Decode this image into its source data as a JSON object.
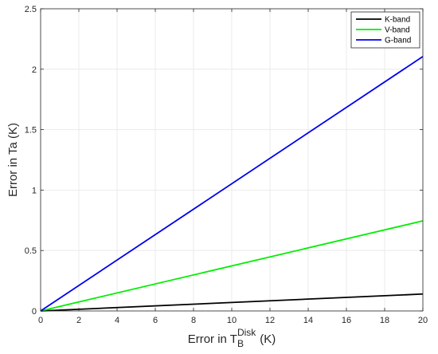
{
  "chart_data": {
    "type": "line",
    "xlabel": {
      "main": "Error in T",
      "sub": "B",
      "sup": "Disk",
      "unit": "(K)"
    },
    "ylabel": "Error in Ta (K)",
    "xlim": [
      0,
      20
    ],
    "ylim": [
      0,
      2.5
    ],
    "xticks": [
      0,
      2,
      4,
      6,
      8,
      10,
      12,
      14,
      16,
      18,
      20
    ],
    "yticks": [
      0,
      0.5,
      1,
      1.5,
      2,
      2.5
    ],
    "xtick_labels": [
      "0",
      "2",
      "4",
      "6",
      "8",
      "10",
      "12",
      "14",
      "16",
      "18",
      "20"
    ],
    "ytick_labels": [
      "0",
      "0.5",
      "1",
      "1.5",
      "2",
      "2.5"
    ],
    "grid": true,
    "legend_position": "top-right",
    "series": [
      {
        "name": "K-band",
        "color": "#000000",
        "x": [
          0,
          20
        ],
        "y": [
          0,
          0.14
        ]
      },
      {
        "name": "V-band",
        "color": "#00ee00",
        "x": [
          0,
          20
        ],
        "y": [
          0,
          0.745
        ]
      },
      {
        "name": "G-band",
        "color": "#0000ee",
        "x": [
          0,
          20
        ],
        "y": [
          0,
          2.105
        ]
      }
    ]
  }
}
